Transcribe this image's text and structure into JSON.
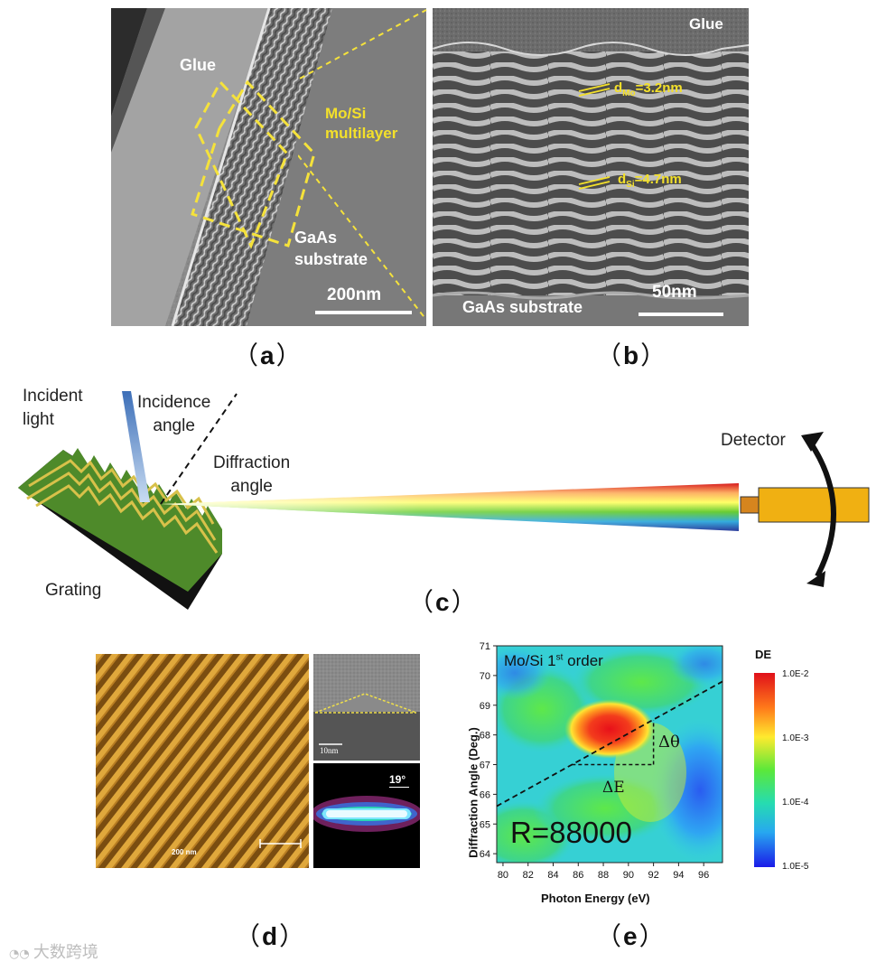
{
  "panel_a": {
    "label": "a",
    "glue": "Glue",
    "multilayer": [
      "Mo/Si",
      "multilayer"
    ],
    "substrate": [
      "GaAs",
      "substrate"
    ],
    "scale": "200nm"
  },
  "panel_b": {
    "label": "b",
    "glue": "Glue",
    "d_mo_sub": "Mo",
    "d_mo_value": "=3.2nm",
    "d_si_sub": "Si",
    "d_si_value": "=4.7nm",
    "substrate": "GaAs substrate",
    "scale": "50nm"
  },
  "panel_c": {
    "label": "c",
    "incident_light": [
      "Incident",
      "light"
    ],
    "incidence_angle": [
      "Incidence",
      "angle"
    ],
    "diffraction_angle": [
      "Diffraction",
      "angle"
    ],
    "grating": "Grating",
    "detector": "Detector"
  },
  "panel_d": {
    "label": "d",
    "afm_scale": "200 nm",
    "tem_scale": "10nm",
    "angle": "19°"
  },
  "panel_e": {
    "label": "e",
    "title_main": "Mo/Si 1",
    "title_sup": "st",
    "title_rest": " order",
    "resolution": "R=88000",
    "delta_theta": "Δθ",
    "delta_e": "ΔE",
    "colorbar_title": "DE",
    "colorbar_labels": [
      "1.0E-2",
      "1.0E-3",
      "1.0E-4",
      "1.0E-5"
    ]
  },
  "chart_data": {
    "type": "heatmap",
    "title": "Mo/Si 1st order",
    "xlabel": "Photon Energy (eV)",
    "ylabel": "Diffraction Angle (Deg.)",
    "xlim": [
      79.5,
      97.5
    ],
    "ylim": [
      63.7,
      71
    ],
    "xticks": [
      80,
      82,
      84,
      86,
      88,
      90,
      92,
      94,
      96
    ],
    "yticks": [
      64,
      65,
      66,
      67,
      68,
      69,
      70,
      71
    ],
    "peak": {
      "x": 88.5,
      "y": 68.2
    },
    "dispersion_line": {
      "x": [
        79.5,
        97.5
      ],
      "y": [
        65.6,
        69.8
      ]
    },
    "delta_E_range": [
      85.5,
      92
    ],
    "delta_theta_range": [
      67.0,
      68.5
    ],
    "colorscale": {
      "min": "1.0E-5",
      "max": "1.0E-2",
      "scale": "log"
    }
  },
  "watermark": "大数跨境"
}
